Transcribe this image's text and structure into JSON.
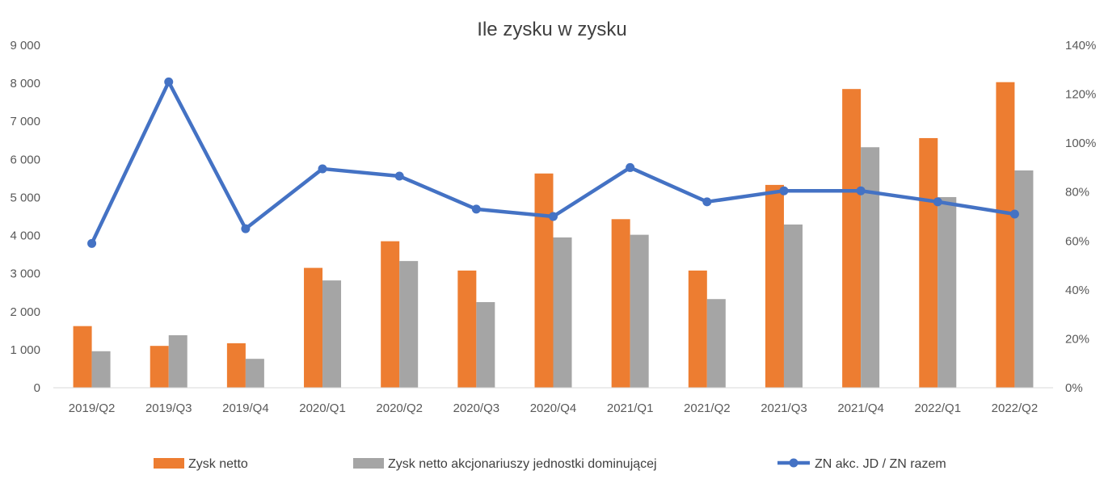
{
  "chart_data": {
    "type": "bar",
    "title": "Ile zysku w zysku",
    "categories": [
      "2019/Q2",
      "2019/Q3",
      "2019/Q4",
      "2020/Q1",
      "2020/Q2",
      "2020/Q3",
      "2020/Q4",
      "2021/Q1",
      "2021/Q2",
      "2021/Q3",
      "2021/Q4",
      "2022/Q1",
      "2022/Q2"
    ],
    "series": [
      {
        "name": "Zysk netto",
        "type": "bar",
        "axis": "left",
        "color": "#ED7D31",
        "values": [
          1620,
          1100,
          1170,
          3150,
          3850,
          3080,
          5630,
          4430,
          3080,
          5330,
          7850,
          6560,
          8030
        ]
      },
      {
        "name": "Zysk netto akcjonariuszy jednostki dominującej",
        "type": "bar",
        "axis": "left",
        "color": "#A5A5A5",
        "values": [
          960,
          1380,
          760,
          2820,
          3330,
          2250,
          3950,
          4020,
          2330,
          4290,
          6320,
          5010,
          5710
        ]
      },
      {
        "name": "ZN akc. JD / ZN razem",
        "type": "line",
        "axis": "right",
        "color": "#4472C4",
        "values": [
          0.59,
          1.25,
          0.65,
          0.895,
          0.865,
          0.73,
          0.7,
          0.9,
          0.76,
          0.805,
          0.805,
          0.76,
          0.71
        ]
      }
    ],
    "y_left": {
      "min": 0,
      "max": 9000,
      "ticks": [
        0,
        1000,
        2000,
        3000,
        4000,
        5000,
        6000,
        7000,
        8000,
        9000
      ],
      "tick_labels": [
        "0",
        "1 000",
        "2 000",
        "3 000",
        "4 000",
        "5 000",
        "6 000",
        "7 000",
        "8 000",
        "9 000"
      ]
    },
    "y_right": {
      "min": 0,
      "max": 1.4,
      "ticks": [
        0,
        0.2,
        0.4,
        0.6,
        0.8,
        1.0,
        1.2,
        1.4
      ],
      "tick_labels": [
        "0%",
        "20%",
        "40%",
        "60%",
        "80%",
        "100%",
        "120%",
        "140%"
      ]
    },
    "grid": false,
    "legend_position": "bottom"
  }
}
